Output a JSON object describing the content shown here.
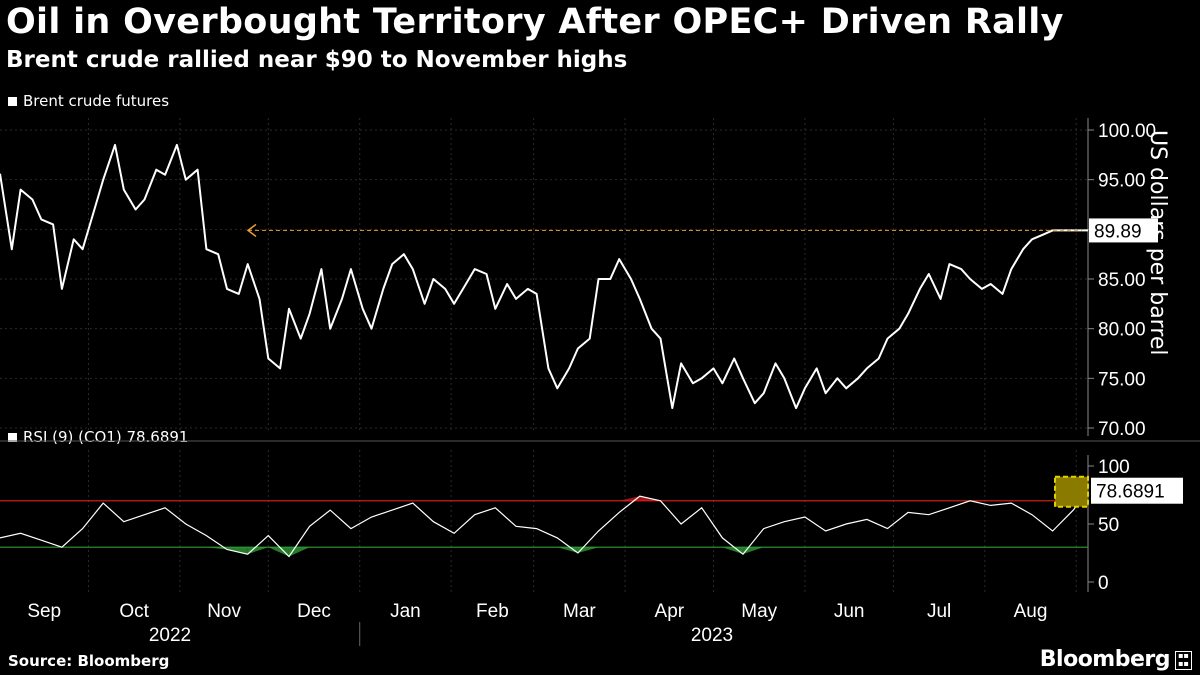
{
  "header": {
    "title": "Oil in Overbought Territory After OPEC+ Driven Rally",
    "subtitle": "Brent crude rallied near $90 to November highs"
  },
  "footer": {
    "source": "Source: Bloomberg",
    "brand": "Bloomberg"
  },
  "colors": {
    "background": "#000000",
    "line": "#ffffff",
    "grid": "#2a2a2a",
    "overbought": "#e0201e",
    "oversold": "#2e9b34",
    "highlight": "#8a7a00",
    "callout": "#f0a030"
  },
  "chart_data": [
    {
      "type": "line",
      "title": "",
      "ylabel": "US dollars per barrel",
      "legend": "Brent crude futures",
      "ylim": [
        70,
        100
      ],
      "yticks": [
        "100.00",
        "95.00",
        "90.00",
        "85.00",
        "80.00",
        "75.00",
        "70.00"
      ],
      "last_value_label": "89.89",
      "reference_value": 89.89,
      "x_month_labels": [
        "Sep",
        "Oct",
        "Nov",
        "Dec",
        "Jan",
        "Feb",
        "Mar",
        "Apr",
        "May",
        "Jun",
        "Jul",
        "Aug"
      ],
      "x_year_labels": [
        "2022",
        "2023"
      ],
      "series": [
        {
          "name": "Brent crude futures",
          "x": [
            "2022-09-01",
            "2022-09-05",
            "2022-09-08",
            "2022-09-12",
            "2022-09-15",
            "2022-09-19",
            "2022-09-22",
            "2022-09-26",
            "2022-09-29",
            "2022-10-03",
            "2022-10-06",
            "2022-10-10",
            "2022-10-13",
            "2022-10-17",
            "2022-10-20",
            "2022-10-24",
            "2022-10-27",
            "2022-10-31",
            "2022-11-03",
            "2022-11-07",
            "2022-11-10",
            "2022-11-14",
            "2022-11-17",
            "2022-11-21",
            "2022-11-24",
            "2022-11-28",
            "2022-12-01",
            "2022-12-05",
            "2022-12-08",
            "2022-12-12",
            "2022-12-15",
            "2022-12-19",
            "2022-12-22",
            "2022-12-26",
            "2022-12-29",
            "2023-01-02",
            "2023-01-05",
            "2023-01-09",
            "2023-01-12",
            "2023-01-16",
            "2023-01-19",
            "2023-01-23",
            "2023-01-26",
            "2023-01-30",
            "2023-02-02",
            "2023-02-06",
            "2023-02-09",
            "2023-02-13",
            "2023-02-16",
            "2023-02-20",
            "2023-02-23",
            "2023-02-27",
            "2023-03-02",
            "2023-03-06",
            "2023-03-09",
            "2023-03-13",
            "2023-03-16",
            "2023-03-20",
            "2023-03-23",
            "2023-03-27",
            "2023-03-30",
            "2023-04-03",
            "2023-04-06",
            "2023-04-10",
            "2023-04-13",
            "2023-04-17",
            "2023-04-20",
            "2023-04-24",
            "2023-04-27",
            "2023-05-01",
            "2023-05-04",
            "2023-05-08",
            "2023-05-11",
            "2023-05-15",
            "2023-05-18",
            "2023-05-22",
            "2023-05-25",
            "2023-05-29",
            "2023-06-01",
            "2023-06-05",
            "2023-06-08",
            "2023-06-12",
            "2023-06-15",
            "2023-06-19",
            "2023-06-22",
            "2023-06-26",
            "2023-06-29",
            "2023-07-03",
            "2023-07-06",
            "2023-07-10",
            "2023-07-13",
            "2023-07-17",
            "2023-07-20",
            "2023-07-24",
            "2023-07-27",
            "2023-07-31",
            "2023-08-03",
            "2023-08-07",
            "2023-08-10",
            "2023-08-14",
            "2023-08-17",
            "2023-08-21",
            "2023-08-24",
            "2023-08-28",
            "2023-08-31",
            "2023-09-05"
          ],
          "values": [
            95.6,
            88.0,
            94.0,
            93.0,
            91.0,
            90.5,
            84.0,
            89.0,
            88.0,
            92.0,
            95.0,
            98.5,
            94.0,
            92.0,
            93.0,
            96.0,
            95.5,
            98.5,
            95.0,
            96.0,
            88.0,
            87.5,
            84.0,
            83.5,
            86.5,
            83.0,
            77.0,
            76.0,
            82.0,
            79.0,
            81.5,
            86.0,
            80.0,
            83.0,
            86.0,
            82.0,
            80.0,
            84.0,
            86.5,
            87.5,
            86.0,
            82.5,
            85.0,
            84.0,
            82.5,
            84.5,
            86.0,
            85.5,
            82.0,
            84.5,
            83.0,
            84.0,
            83.5,
            76.0,
            74.0,
            76.0,
            78.0,
            79.0,
            85.0,
            85.0,
            87.0,
            85.0,
            83.0,
            80.0,
            79.0,
            72.0,
            76.5,
            74.5,
            75.0,
            76.0,
            74.5,
            77.0,
            75.0,
            72.5,
            73.5,
            76.5,
            75.0,
            72.0,
            74.0,
            76.0,
            73.5,
            75.0,
            74.0,
            75.0,
            76.0,
            77.0,
            79.0,
            80.0,
            81.5,
            84.0,
            85.5,
            83.0,
            86.5,
            86.0,
            85.0,
            84.0,
            84.5,
            83.5,
            86.0,
            88.0,
            89.0,
            89.5,
            89.89,
            89.89,
            89.89,
            89.89
          ]
        }
      ]
    },
    {
      "type": "line",
      "title": "",
      "legend": "RSI (9) (CO1) 78.6891",
      "ylim": [
        0,
        100
      ],
      "yticks": [
        "100",
        "50",
        "0"
      ],
      "last_value_label": "78.6891",
      "overbought_level": 70,
      "oversold_level": 30,
      "series": [
        {
          "name": "RSI (9) (CO1)",
          "x": [
            "2022-09-01",
            "2022-09-08",
            "2022-09-15",
            "2022-09-22",
            "2022-09-29",
            "2022-10-06",
            "2022-10-13",
            "2022-10-20",
            "2022-10-27",
            "2022-11-03",
            "2022-11-10",
            "2022-11-17",
            "2022-11-24",
            "2022-12-01",
            "2022-12-08",
            "2022-12-15",
            "2022-12-22",
            "2022-12-29",
            "2023-01-05",
            "2023-01-12",
            "2023-01-19",
            "2023-01-26",
            "2023-02-02",
            "2023-02-09",
            "2023-02-16",
            "2023-02-23",
            "2023-03-02",
            "2023-03-09",
            "2023-03-16",
            "2023-03-23",
            "2023-03-30",
            "2023-04-06",
            "2023-04-13",
            "2023-04-20",
            "2023-04-27",
            "2023-05-04",
            "2023-05-11",
            "2023-05-18",
            "2023-05-25",
            "2023-06-01",
            "2023-06-08",
            "2023-06-15",
            "2023-06-22",
            "2023-06-29",
            "2023-07-06",
            "2023-07-13",
            "2023-07-20",
            "2023-07-27",
            "2023-08-03",
            "2023-08-10",
            "2023-08-17",
            "2023-08-24",
            "2023-08-31",
            "2023-09-05"
          ],
          "values": [
            38,
            42,
            36,
            30,
            46,
            68,
            52,
            58,
            64,
            50,
            40,
            28,
            24,
            40,
            22,
            48,
            62,
            46,
            56,
            62,
            68,
            52,
            42,
            58,
            64,
            48,
            46,
            38,
            25,
            44,
            60,
            74,
            70,
            50,
            64,
            38,
            24,
            46,
            52,
            56,
            44,
            50,
            54,
            46,
            60,
            58,
            64,
            70,
            66,
            68,
            58,
            44,
            62,
            78.6891
          ]
        }
      ]
    }
  ]
}
